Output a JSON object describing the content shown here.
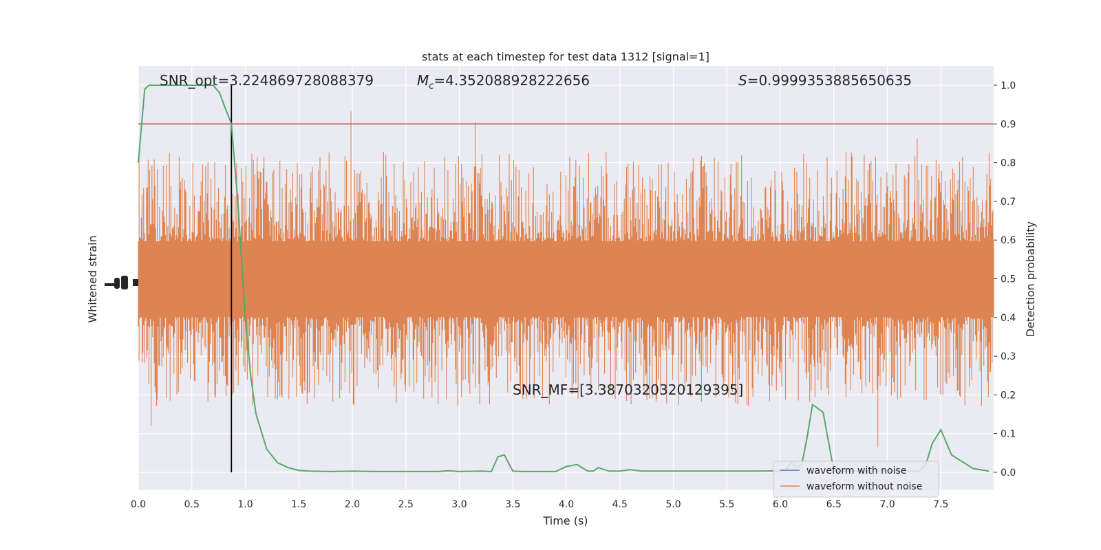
{
  "chart_data": {
    "type": "line",
    "title": "stats at each timestep for test data 1312 [signal=1]",
    "xlabel": "Time (s)",
    "ylabel_left": "Whitened strain",
    "ylabel_right": "Detection probability",
    "xlim": [
      0.0,
      8.0
    ],
    "ylim_right": [
      -0.05,
      1.05
    ],
    "grid": true,
    "legend_placement": "lower-right",
    "x_ticks": [
      "0.0",
      "0.5",
      "1.0",
      "1.5",
      "2.0",
      "2.5",
      "3.0",
      "3.5",
      "4.0",
      "4.5",
      "5.0",
      "5.5",
      "6.0",
      "6.5",
      "7.0",
      "7.5"
    ],
    "y_right_ticks": [
      "0.0",
      "0.1",
      "0.2",
      "0.3",
      "0.4",
      "0.5",
      "0.6",
      "0.7",
      "0.8",
      "0.9",
      "1.0"
    ],
    "annotations": {
      "snr_opt": "SNR_opt=3.224869728088379",
      "mc_symbol": "M",
      "mc_subscript": "c",
      "mc_value": "=4.352088928222656",
      "s_symbol": "S",
      "s_value": "=0.9999353885650635",
      "snr_mf": "SNR_MF=[3.3870320320129395]"
    },
    "threshold": 0.9,
    "vline_x": 0.87,
    "series": [
      {
        "name": "waveform with noise",
        "color": "#4c72b0",
        "role": "strain"
      },
      {
        "name": "waveform without noise",
        "color": "#dd8452",
        "role": "strain"
      },
      {
        "color": "#55a868",
        "role": "detection_probability",
        "x": [
          0.0,
          0.06,
          0.1,
          0.2,
          0.3,
          0.4,
          0.5,
          0.6,
          0.7,
          0.76,
          0.8,
          0.87,
          0.93,
          1.0,
          1.05,
          1.1,
          1.2,
          1.3,
          1.4,
          1.5,
          1.6,
          1.8,
          2.0,
          2.2,
          2.4,
          2.6,
          2.8,
          2.9,
          3.0,
          3.2,
          3.3,
          3.36,
          3.42,
          3.5,
          3.6,
          3.7,
          3.8,
          3.9,
          4.0,
          4.1,
          4.2,
          4.25,
          4.3,
          4.4,
          4.5,
          4.6,
          4.7,
          4.8,
          5.0,
          5.2,
          5.4,
          5.6,
          5.8,
          6.0,
          6.05,
          6.1,
          6.15,
          6.2,
          6.25,
          6.3,
          6.4,
          6.5,
          6.7,
          7.0,
          7.2,
          7.3,
          7.36,
          7.42,
          7.5,
          7.6,
          7.8,
          7.95
        ],
        "y": [
          0.8,
          0.99,
          1.0,
          1.0,
          1.0,
          1.0,
          1.0,
          1.0,
          1.0,
          0.98,
          0.95,
          0.9,
          0.7,
          0.4,
          0.25,
          0.15,
          0.06,
          0.025,
          0.012,
          0.005,
          0.003,
          0.002,
          0.003,
          0.002,
          0.002,
          0.002,
          0.002,
          0.004,
          0.002,
          0.003,
          0.002,
          0.04,
          0.045,
          0.003,
          0.002,
          0.002,
          0.002,
          0.002,
          0.015,
          0.02,
          0.003,
          0.003,
          0.012,
          0.003,
          0.003,
          0.007,
          0.003,
          0.003,
          0.003,
          0.003,
          0.003,
          0.003,
          0.003,
          0.004,
          0.005,
          0.025,
          0.015,
          0.02,
          0.09,
          0.175,
          0.155,
          0.003,
          0.003,
          0.003,
          0.003,
          0.003,
          0.02,
          0.075,
          0.11,
          0.045,
          0.01,
          0.003
        ]
      }
    ]
  }
}
